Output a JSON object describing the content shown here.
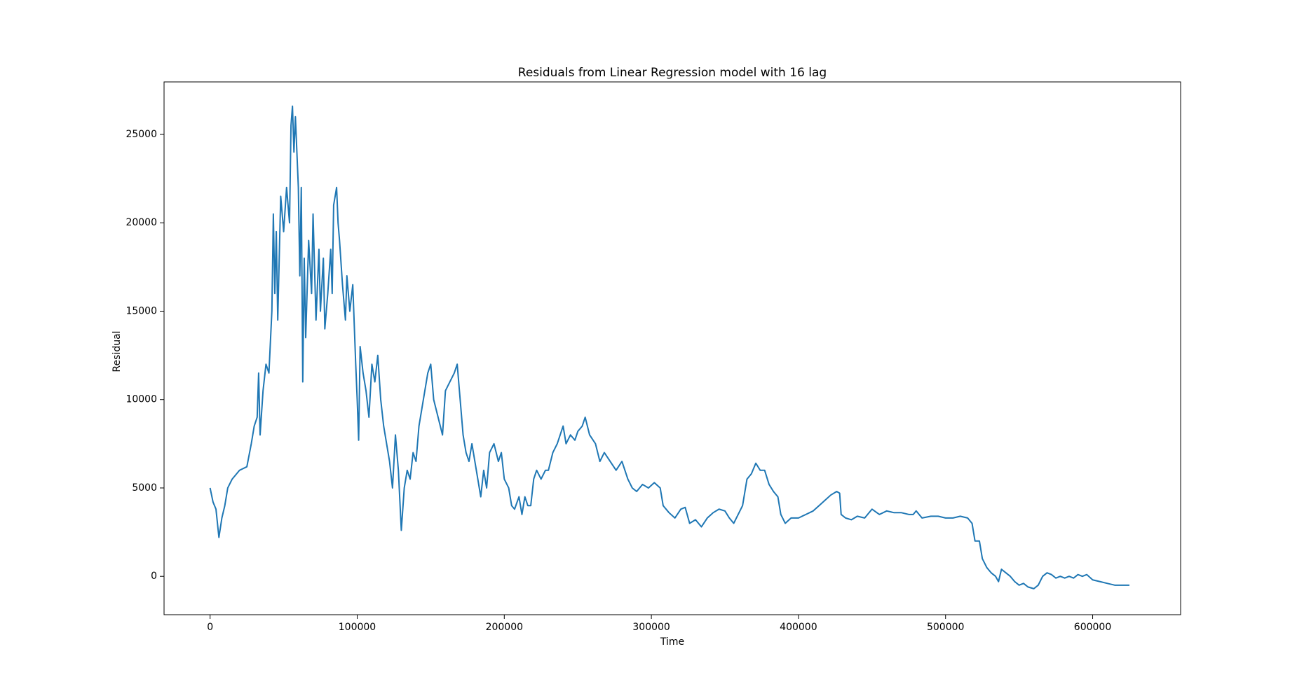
{
  "chart_data": {
    "type": "line",
    "title": "Residuals from Linear Regression model with 16 lag",
    "x_label": "Time",
    "y_label": "Residual",
    "xlim": [
      -31300,
      659800
    ],
    "ylim": [
      -2170,
      27970
    ],
    "xticks": [
      0,
      100000,
      200000,
      300000,
      400000,
      500000,
      600000
    ],
    "yticks": [
      0,
      5000,
      10000,
      15000,
      20000,
      25000
    ],
    "grid": false,
    "color": "#1f77b4",
    "x": [
      0,
      2000,
      4000,
      6000,
      8000,
      10000,
      12000,
      15000,
      20000,
      25000,
      28000,
      30000,
      32000,
      33000,
      34000,
      36000,
      38000,
      40000,
      42000,
      43000,
      44000,
      45000,
      46000,
      48000,
      50000,
      52000,
      54000,
      55000,
      56000,
      57000,
      58000,
      60000,
      61000,
      62000,
      63000,
      64000,
      65000,
      67000,
      69000,
      70000,
      72000,
      74000,
      75000,
      77000,
      78000,
      80000,
      82000,
      83000,
      84000,
      86000,
      87000,
      88000,
      90000,
      92000,
      93000,
      95000,
      97000,
      99000,
      100000,
      101000,
      102000,
      104000,
      106000,
      108000,
      110000,
      112000,
      114000,
      116000,
      118000,
      120000,
      122000,
      124000,
      126000,
      128000,
      130000,
      132000,
      134000,
      136000,
      138000,
      140000,
      142000,
      144000,
      146000,
      148000,
      150000,
      152000,
      155000,
      158000,
      160000,
      163000,
      166000,
      168000,
      170000,
      172000,
      174000,
      176000,
      178000,
      180000,
      182000,
      184000,
      186000,
      188000,
      190000,
      193000,
      196000,
      198000,
      200000,
      203000,
      205000,
      207000,
      210000,
      212000,
      214000,
      216000,
      218000,
      220000,
      222000,
      225000,
      228000,
      230000,
      233000,
      236000,
      238000,
      240000,
      242000,
      245000,
      248000,
      250000,
      253000,
      255000,
      258000,
      262000,
      265000,
      268000,
      272000,
      276000,
      280000,
      284000,
      287000,
      290000,
      294000,
      298000,
      302000,
      306000,
      308000,
      312000,
      316000,
      320000,
      323000,
      326000,
      330000,
      334000,
      338000,
      342000,
      346000,
      350000,
      353000,
      356000,
      359000,
      362000,
      365000,
      368000,
      371000,
      374000,
      377000,
      380000,
      383000,
      386000,
      388000,
      391000,
      395000,
      400000,
      405000,
      410000,
      414000,
      418000,
      422000,
      426000,
      428000,
      429000,
      432000,
      436000,
      440000,
      445000,
      450000,
      455000,
      460000,
      465000,
      470000,
      475000,
      478000,
      480000,
      484000,
      490000,
      495000,
      500000,
      505000,
      510000,
      515000,
      518000,
      520000,
      523000,
      525000,
      528000,
      531000,
      534000,
      536000,
      538000,
      541000,
      544000,
      547000,
      550000,
      553000,
      556000,
      560000,
      563000,
      566000,
      569000,
      572000,
      575000,
      578000,
      581000,
      584000,
      587000,
      590000,
      593000,
      596000,
      600000,
      605000,
      610000,
      615000,
      620000,
      625000
    ],
    "values": [
      5000,
      4200,
      3800,
      2200,
      3300,
      4000,
      5000,
      5500,
      6000,
      6200,
      7500,
      8500,
      9000,
      11500,
      8000,
      10500,
      12000,
      11500,
      15000,
      20500,
      16000,
      19500,
      14500,
      21500,
      19500,
      22000,
      20000,
      25500,
      26600,
      24000,
      26000,
      22000,
      17000,
      22000,
      11000,
      18000,
      13500,
      19000,
      16000,
      20500,
      14500,
      18500,
      15000,
      18000,
      14000,
      16000,
      18500,
      16000,
      21000,
      22000,
      20000,
      19000,
      16500,
      14500,
      17000,
      15000,
      16500,
      12000,
      10000,
      7700,
      13000,
      11500,
      10500,
      9000,
      12000,
      11000,
      12500,
      10000,
      8500,
      7500,
      6500,
      5000,
      8000,
      6000,
      2600,
      5000,
      6000,
      5500,
      7000,
      6500,
      8500,
      9500,
      10500,
      11500,
      12000,
      10000,
      9000,
      8000,
      10500,
      11000,
      11500,
      12000,
      10000,
      8000,
      7000,
      6500,
      7500,
      6500,
      5500,
      4500,
      6000,
      5000,
      7000,
      7500,
      6500,
      7000,
      5500,
      5000,
      4000,
      3800,
      4500,
      3500,
      4500,
      4000,
      4000,
      5500,
      6000,
      5500,
      6000,
      6000,
      7000,
      7500,
      8000,
      8500,
      7500,
      8000,
      7700,
      8200,
      8500,
      9000,
      8000,
      7500,
      6500,
      7000,
      6500,
      6000,
      6500,
      5500,
      5000,
      4800,
      5200,
      5000,
      5300,
      5000,
      4000,
      3600,
      3300,
      3800,
      3900,
      3000,
      3200,
      2800,
      3300,
      3600,
      3800,
      3700,
      3300,
      3000,
      3500,
      4000,
      5500,
      5800,
      6400,
      6000,
      6000,
      5200,
      4800,
      4500,
      3500,
      3000,
      3300,
      3300,
      3500,
      3700,
      4000,
      4300,
      4600,
      4800,
      4700,
      3500,
      3300,
      3200,
      3400,
      3300,
      3800,
      3500,
      3700,
      3600,
      3600,
      3500,
      3500,
      3700,
      3300,
      3400,
      3400,
      3300,
      3300,
      3400,
      3300,
      3000,
      2000,
      2000,
      1000,
      500,
      200,
      0,
      -300,
      400,
      200,
      0,
      -300,
      -500,
      -400,
      -600,
      -700,
      -500,
      0,
      200,
      100,
      -100,
      0,
      -100,
      0,
      -100,
      100,
      0,
      100,
      -200,
      -300,
      -400,
      -500,
      -500,
      -500
    ]
  }
}
